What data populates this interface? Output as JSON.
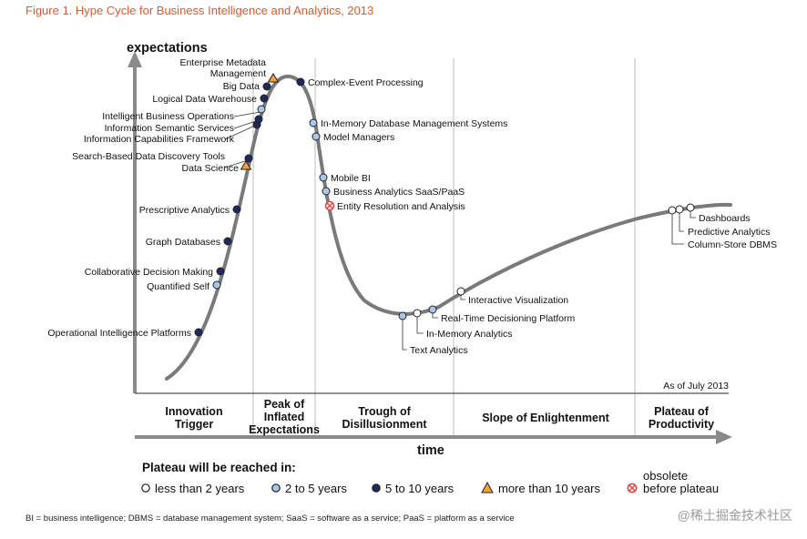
{
  "title": "Figure 1. Hype Cycle for Business Intelligence and Analytics, 2013",
  "chart_data": {
    "type": "line",
    "ylabel": "expectations",
    "xlabel": "time",
    "as_of": "As of July 2013",
    "phases": [
      {
        "line1": "Innovation",
        "line2": "Trigger",
        "line3": ""
      },
      {
        "line1": "Peak of",
        "line2": "Inflated",
        "line3": "Expectations"
      },
      {
        "line1": "Trough of",
        "line2": "Disillusionment",
        "line3": ""
      },
      {
        "line1": "Slope of Enlightenment",
        "line2": "",
        "line3": ""
      },
      {
        "line1": "Plateau of",
        "line2": "Productivity",
        "line3": ""
      }
    ],
    "marker_colors": {
      "lt2": "#ffffff",
      "2to5": "#a9c8e8",
      "5to10": "#1c2a5c",
      "gt10": "#f0a23a",
      "obsolete": "#e04848"
    },
    "technologies": [
      {
        "name": "Operational Intelligence Platforms",
        "category": "5to10"
      },
      {
        "name": "Quantified Self",
        "category": "2to5"
      },
      {
        "name": "Collaborative Decision Making",
        "category": "5to10"
      },
      {
        "name": "Graph Databases",
        "category": "5to10"
      },
      {
        "name": "Prescriptive Analytics",
        "category": "5to10"
      },
      {
        "name": "Data Science",
        "category": "gt10"
      },
      {
        "name": "Search-Based Data Discovery Tools",
        "category": "5to10"
      },
      {
        "name": "Information Capabilities Framework",
        "category": "5to10"
      },
      {
        "name": "Information Semantic Services",
        "category": "5to10"
      },
      {
        "name": "Intelligent Business Operations",
        "category": "2to5"
      },
      {
        "name": "Logical Data Warehouse",
        "category": "5to10"
      },
      {
        "name": "Big Data",
        "category": "5to10"
      },
      {
        "name": "Enterprise Metadata Management",
        "category": "gt10"
      },
      {
        "name": "Complex-Event Processing",
        "category": "5to10"
      },
      {
        "name": "In-Memory Database Management Systems",
        "category": "2to5"
      },
      {
        "name": "Model Managers",
        "category": "2to5"
      },
      {
        "name": "Mobile BI",
        "category": "2to5"
      },
      {
        "name": "Business Analytics SaaS/PaaS",
        "category": "2to5"
      },
      {
        "name": "Entity Resolution and Analysis",
        "category": "obsolete"
      },
      {
        "name": "Text Analytics",
        "category": "2to5"
      },
      {
        "name": "In-Memory Analytics",
        "category": "lt2"
      },
      {
        "name": "Real-Time Decisioning Platform",
        "category": "2to5"
      },
      {
        "name": "Interactive Visualization",
        "category": "lt2"
      },
      {
        "name": "Column-Store DBMS",
        "category": "lt2"
      },
      {
        "name": "Predictive Analytics",
        "category": "lt2"
      },
      {
        "name": "Dashboards",
        "category": "lt2"
      }
    ],
    "legend": {
      "heading": "Plateau will be reached in:",
      "items": [
        {
          "category": "lt2",
          "label": "less than 2 years"
        },
        {
          "category": "2to5",
          "label": "2 to 5 years"
        },
        {
          "category": "5to10",
          "label": "5 to 10 years"
        },
        {
          "category": "gt10",
          "label": "more than 10 years"
        },
        {
          "category": "obsolete",
          "label": "obsolete",
          "label2": "before plateau"
        }
      ]
    }
  },
  "footnote": "BI = business intelligence; DBMS = database management system; SaaS = software as a service; PaaS = platform as a service",
  "watermark": "@稀土掘金技术社区"
}
